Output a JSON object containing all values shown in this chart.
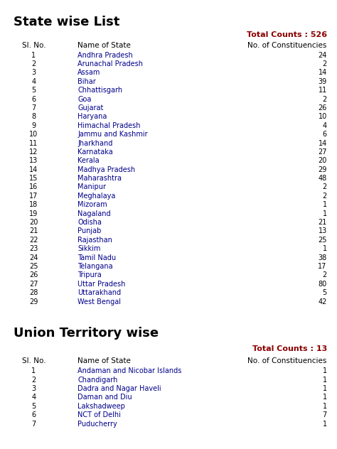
{
  "title1": "State wise List",
  "title2": "Union Territory wise",
  "total_counts_states": "Total Counts : 526",
  "total_counts_ut": "Total Counts : 13",
  "header_col1": "Sl. No.",
  "header_col2": "Name of State",
  "header_col3": "No. of Constituencies",
  "states": [
    [
      "1",
      "Andhra Pradesh",
      "24"
    ],
    [
      "2",
      "Arunachal Pradesh",
      "2"
    ],
    [
      "3",
      "Assam",
      "14"
    ],
    [
      "4",
      "Bihar",
      "39"
    ],
    [
      "5",
      "Chhattisgarh",
      "11"
    ],
    [
      "6",
      "Goa",
      "2"
    ],
    [
      "7",
      "Gujarat",
      "26"
    ],
    [
      "8",
      "Haryana",
      "10"
    ],
    [
      "9",
      "Himachal Pradesh",
      "4"
    ],
    [
      "10",
      "Jammu and Kashmir",
      "6"
    ],
    [
      "11",
      "Jharkhand",
      "14"
    ],
    [
      "12",
      "Karnataka",
      "27"
    ],
    [
      "13",
      "Kerala",
      "20"
    ],
    [
      "14",
      "Madhya Pradesh",
      "29"
    ],
    [
      "15",
      "Maharashtra",
      "48"
    ],
    [
      "16",
      "Manipur",
      "2"
    ],
    [
      "17",
      "Meghalaya",
      "2"
    ],
    [
      "18",
      "Mizoram",
      "1"
    ],
    [
      "19",
      "Nagaland",
      "1"
    ],
    [
      "20",
      "Odisha",
      "21"
    ],
    [
      "21",
      "Punjab",
      "13"
    ],
    [
      "22",
      "Rajasthan",
      "25"
    ],
    [
      "23",
      "Sikkim",
      "1"
    ],
    [
      "24",
      "Tamil Nadu",
      "38"
    ],
    [
      "25",
      "Telangana",
      "17"
    ],
    [
      "26",
      "Tripura",
      "2"
    ],
    [
      "27",
      "Uttar Pradesh",
      "80"
    ],
    [
      "28",
      "Uttarakhand",
      "5"
    ],
    [
      "29",
      "West Bengal",
      "42"
    ]
  ],
  "uts": [
    [
      "1",
      "Andaman and Nicobar Islands",
      "1"
    ],
    [
      "2",
      "Chandigarh",
      "1"
    ],
    [
      "3",
      "Dadra and Nagar Haveli",
      "1"
    ],
    [
      "4",
      "Daman and Diu",
      "1"
    ],
    [
      "5",
      "Lakshadweep",
      "1"
    ],
    [
      "6",
      "NCT of Delhi",
      "7"
    ],
    [
      "7",
      "Puducherry",
      "1"
    ]
  ],
  "bg_color": "#ffffff",
  "title_color": "#000000",
  "total_color": "#8b0000",
  "header_color": "#000000",
  "link_color": "#00008b",
  "number_color": "#000000",
  "title_fontsize": 13,
  "header_fontsize": 7.5,
  "row_fontsize": 7.0,
  "total_fontsize": 8.0
}
